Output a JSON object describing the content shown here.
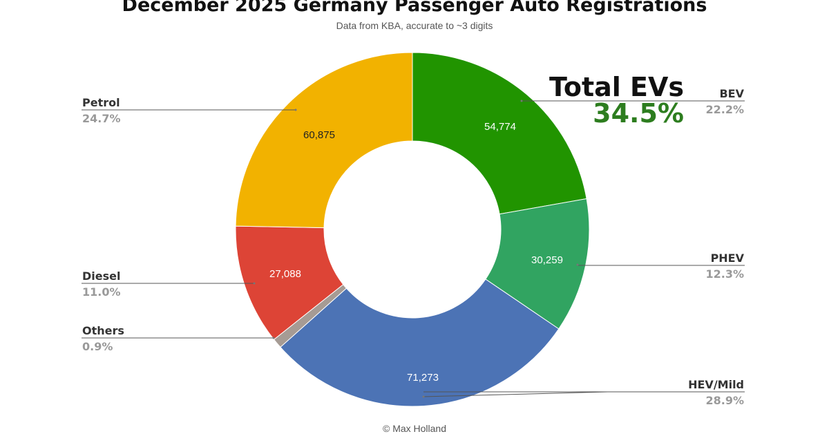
{
  "chart_data": {
    "type": "pie",
    "title": "December 2025 Germany Passenger Auto Registrations",
    "subtitle": "Data from KBA, accurate to ~3 digits",
    "credit": "© Max Holland",
    "total_evs": {
      "label": "Total EVs",
      "value": "34.5%",
      "color": "#2d7d1f"
    },
    "legend_placement": "outside labels",
    "slices": [
      {
        "name": "BEV",
        "value": 54774,
        "value_label": "54,774",
        "percent": "22.2%",
        "color": "#219400"
      },
      {
        "name": "PHEV",
        "value": 30259,
        "value_label": "30,259",
        "percent": "12.3%",
        "color": "#31a461"
      },
      {
        "name": "HEV/Mild",
        "value": 71273,
        "value_label": "71,273",
        "percent": "28.9%",
        "color": "#4c73b5"
      },
      {
        "name": "Others",
        "value": 2220,
        "value_label": "",
        "percent": "0.9%",
        "color": "#a69b94"
      },
      {
        "name": "Diesel",
        "value": 27088,
        "value_label": "27,088",
        "percent": "11.0%",
        "color": "#dd4436"
      },
      {
        "name": "Petrol",
        "value": 60875,
        "value_label": "60,875",
        "percent": "24.7%",
        "color": "#f2b200"
      }
    ]
  }
}
